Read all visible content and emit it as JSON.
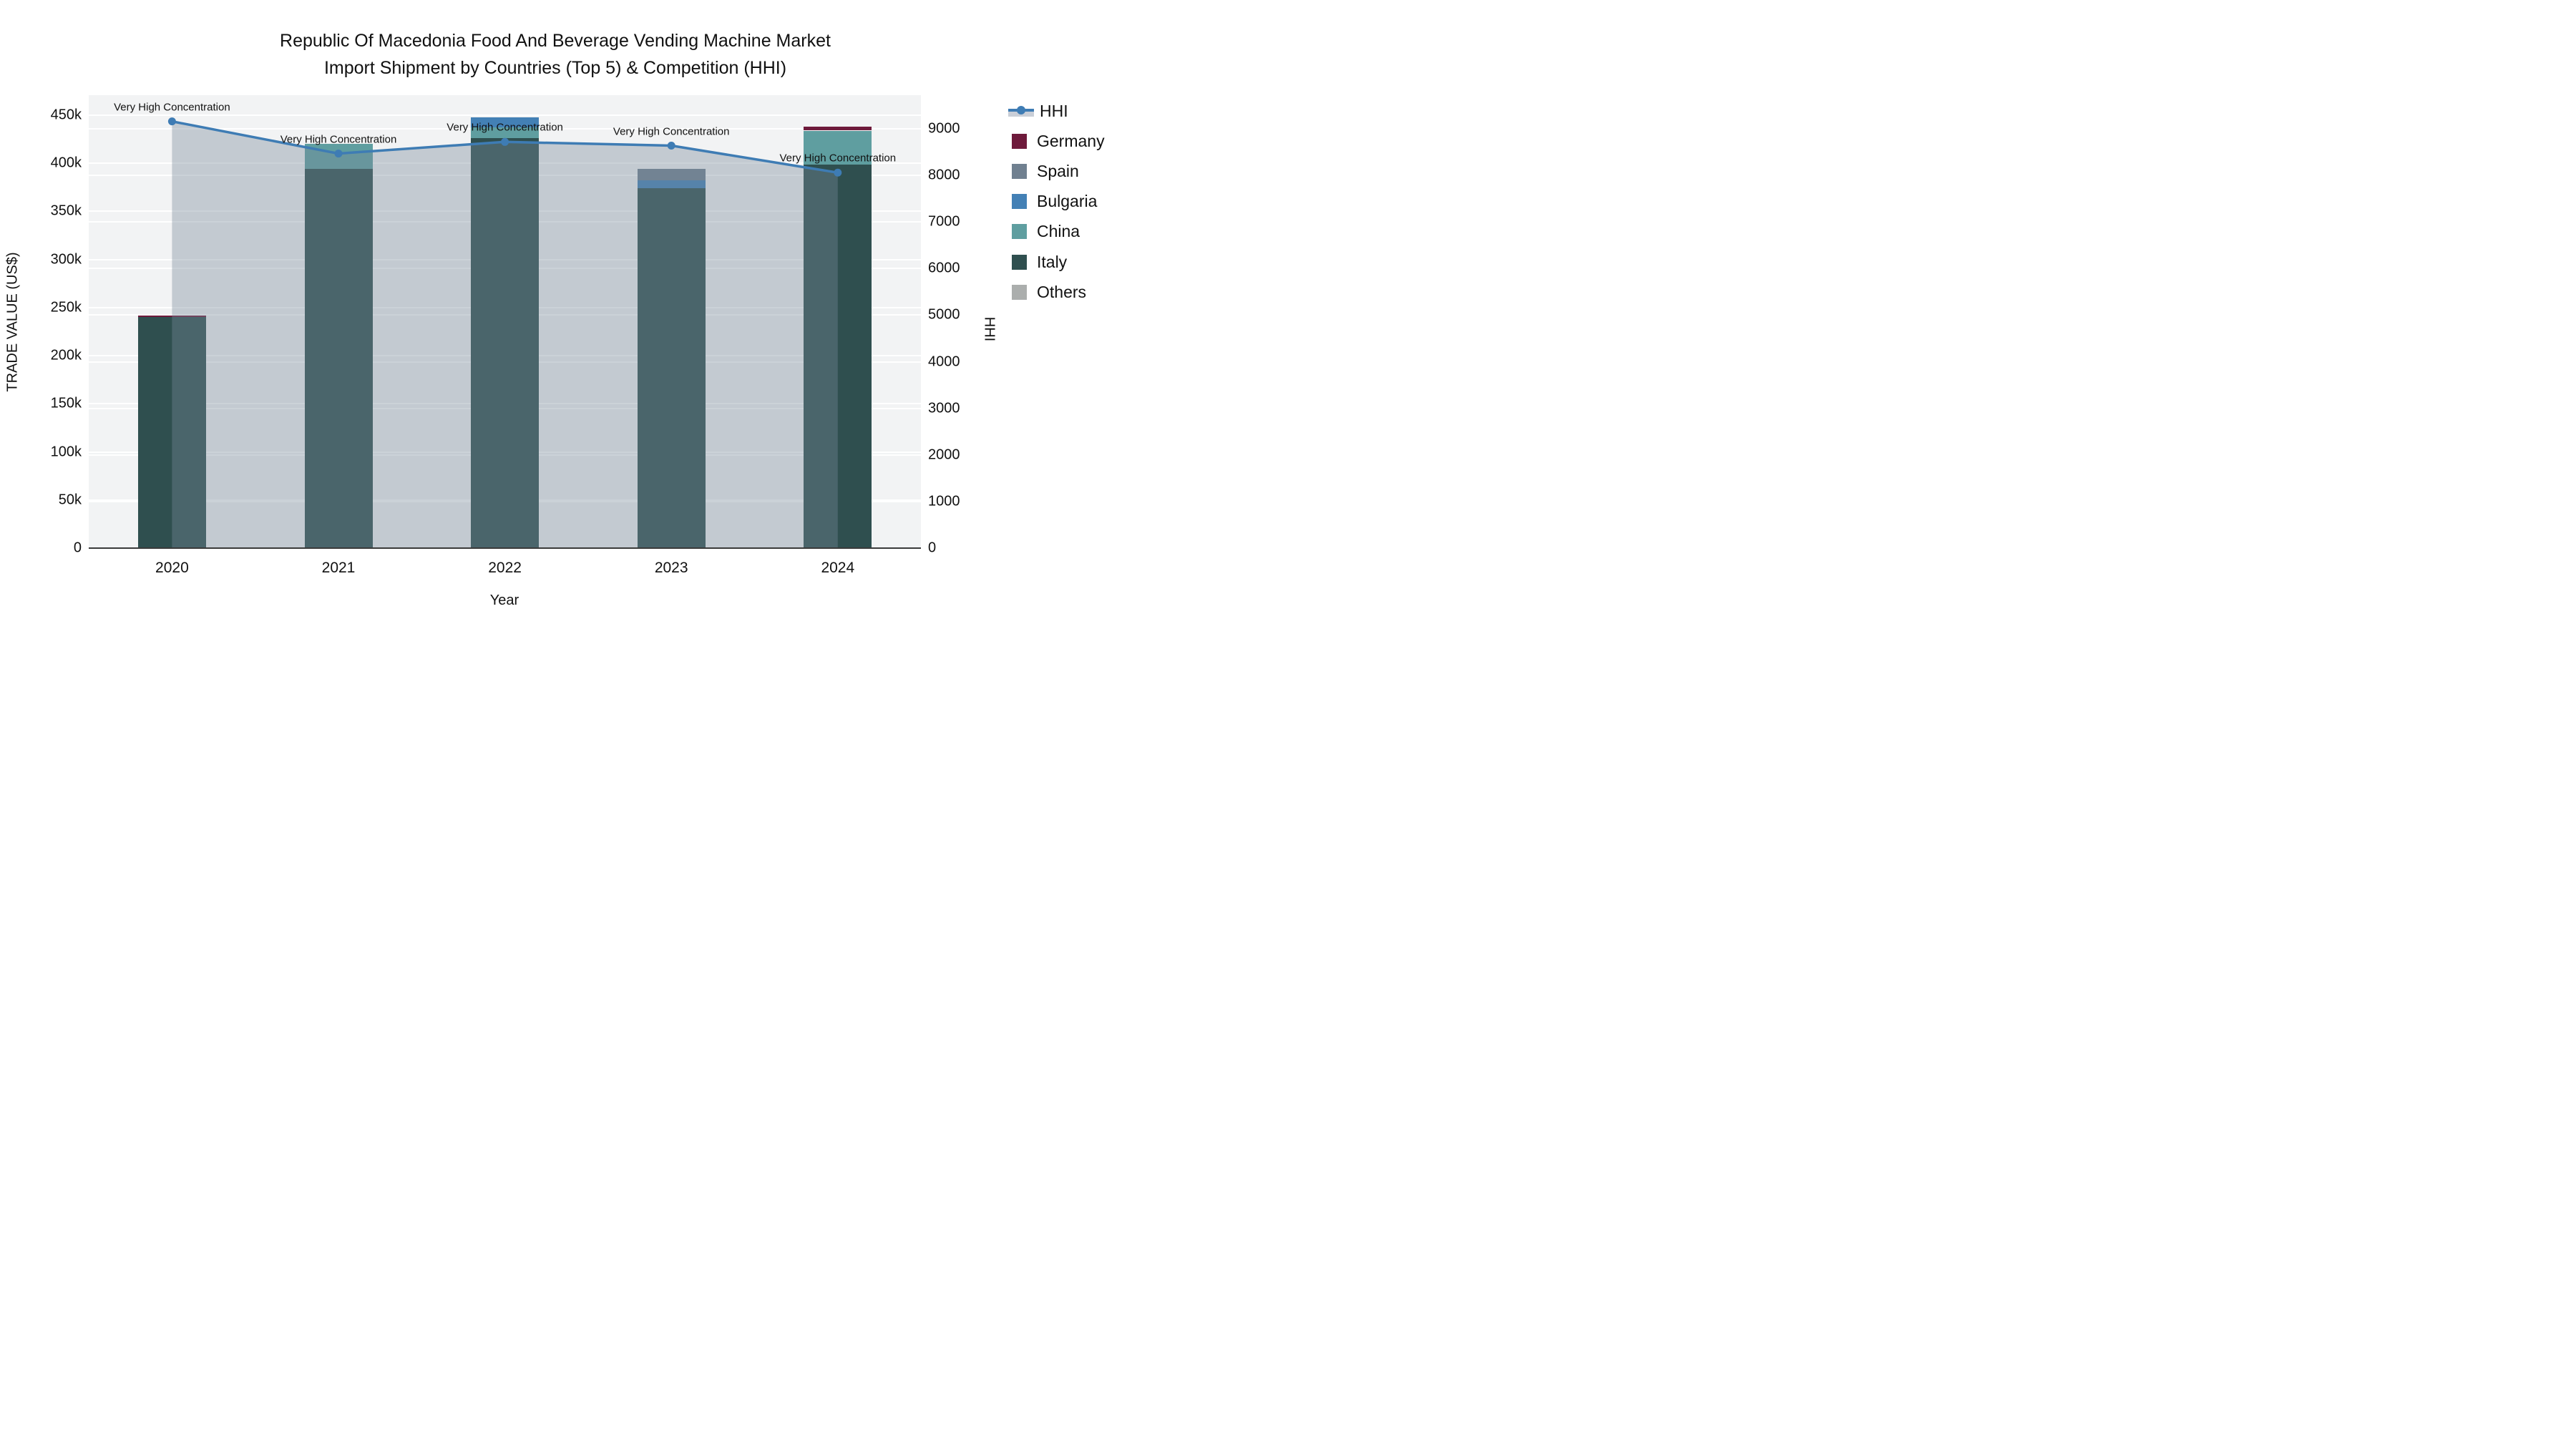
{
  "title": {
    "line1": "Republic Of Macedonia Food And Beverage Vending Machine Market",
    "line2": "Import Shipment by Countries (Top 5) & Competition (HHI)"
  },
  "chart_data": {
    "type": "bar+line",
    "categories": [
      "2020",
      "2021",
      "2022",
      "2023",
      "2024"
    ],
    "unit": "US$ thousands",
    "series": [
      {
        "name": "Italy",
        "color": "#2F4F4F",
        "values": [
          240,
          394,
          426,
          374,
          399
        ]
      },
      {
        "name": "China",
        "color": "#5F9EA0",
        "values": [
          0,
          26,
          11,
          0,
          35
        ]
      },
      {
        "name": "Bulgaria",
        "color": "#4380B5",
        "values": [
          0,
          0,
          11,
          8,
          0
        ]
      },
      {
        "name": "Spain",
        "color": "#708090",
        "values": [
          0,
          0,
          0,
          12,
          0
        ]
      },
      {
        "name": "Germany",
        "color": "#6E1A3B",
        "values": [
          2,
          0,
          0,
          0,
          4
        ]
      },
      {
        "name": "Others",
        "color": "#ABAEAD",
        "values": [
          0,
          0,
          0,
          0,
          0
        ]
      }
    ],
    "hhi": {
      "name": "HHI",
      "line_color": "#3E7CB4",
      "fill_color": "rgba(119,136,153,0.38)",
      "values": [
        9160,
        8470,
        8720,
        8640,
        8060
      ]
    },
    "annotations": [
      {
        "year": "2020",
        "text": "Very High Concentration"
      },
      {
        "year": "2021",
        "text": "Very High Concentration"
      },
      {
        "year": "2022",
        "text": "Very High Concentration"
      },
      {
        "year": "2023",
        "text": "Very High Concentration"
      },
      {
        "year": "2024",
        "text": "Very High Concentration"
      }
    ],
    "left_axis": {
      "title": "TRADE VALUE (US$)",
      "tick_step": 50,
      "tick_count": 10,
      "tick_labels": [
        "0",
        "50k",
        "100k",
        "150k",
        "200k",
        "250k",
        "300k",
        "350k",
        "400k",
        "450k"
      ],
      "ylim": [
        0,
        470.8
      ]
    },
    "right_axis": {
      "title": "HHI",
      "tick_step": 1000,
      "tick_count": 10,
      "tick_labels": [
        "0",
        "1000",
        "2000",
        "3000",
        "4000",
        "5000",
        "6000",
        "7000",
        "8000",
        "9000"
      ],
      "ylim": [
        0,
        9723
      ]
    },
    "x_axis": {
      "title": "Year"
    },
    "legend_position": "right"
  },
  "legend": {
    "items": [
      {
        "label": "HHI",
        "type": "line",
        "color": "#3E7CB4"
      },
      {
        "label": "Germany",
        "type": "swatch",
        "color": "#6E1A3B"
      },
      {
        "label": "Spain",
        "type": "swatch",
        "color": "#708090"
      },
      {
        "label": "Bulgaria",
        "type": "swatch",
        "color": "#4380B5"
      },
      {
        "label": "China",
        "type": "swatch",
        "color": "#5F9EA0"
      },
      {
        "label": "Italy",
        "type": "swatch",
        "color": "#2F4F4F"
      },
      {
        "label": "Others",
        "type": "swatch",
        "color": "#ABAEAD"
      }
    ]
  }
}
